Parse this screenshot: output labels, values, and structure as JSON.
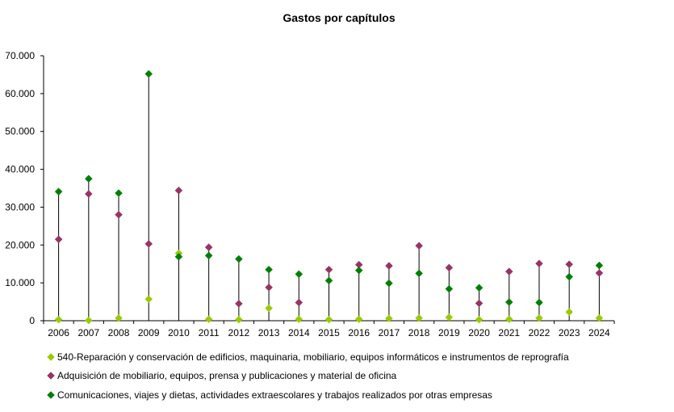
{
  "chart_data": {
    "type": "scatter",
    "title": "Gastos por capítulos",
    "xlabel": "",
    "ylabel": "",
    "ylim": [
      0,
      70000
    ],
    "yticks": [
      0,
      10000,
      20000,
      30000,
      40000,
      50000,
      60000,
      70000
    ],
    "ytick_labels": [
      "0",
      "10.000",
      "20.000",
      "30.000",
      "40.000",
      "50.000",
      "60.000",
      "70.000"
    ],
    "categories": [
      "2006",
      "2007",
      "2008",
      "2009",
      "2010",
      "2011",
      "2012",
      "2013",
      "2014",
      "2015",
      "2016",
      "2017",
      "2018",
      "2019",
      "2020",
      "2021",
      "2022",
      "2023",
      "2024"
    ],
    "drop_lines": true,
    "grid": false,
    "legend_position": "bottom",
    "series": [
      {
        "name": "540-Reparación y conservación de edificios, maquinaria, mobiliario, equipos informáticos e instrumentos de reprografía",
        "color": "#99cc00",
        "values": [
          300,
          100,
          700,
          5700,
          17800,
          400,
          300,
          3300,
          400,
          300,
          400,
          600,
          700,
          900,
          300,
          400,
          700,
          2300,
          700
        ]
      },
      {
        "name": "Adquisición de mobiliario, equipos, prensa y publicaciones y material de oficina",
        "color": "#993366",
        "values": [
          21500,
          33500,
          28000,
          20300,
          34400,
          19400,
          4500,
          8800,
          4800,
          13500,
          14800,
          14500,
          19800,
          14000,
          4600,
          13000,
          15100,
          14900,
          12600
        ]
      },
      {
        "name": "Comunicaciones, viajes y dietas, actividades extraescolares y trabajos realizados por otras empresas",
        "color": "#008000",
        "values": [
          34100,
          37500,
          33700,
          65200,
          16900,
          17200,
          16300,
          13500,
          12300,
          10600,
          13300,
          9900,
          12500,
          8400,
          8700,
          4900,
          4800,
          11600,
          14600
        ]
      }
    ]
  }
}
